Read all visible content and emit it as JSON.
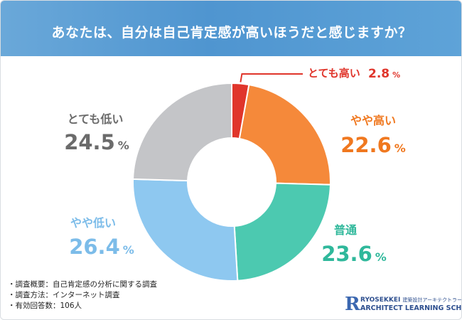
{
  "header": {
    "title": "あなたは、自分は自己肯定感が高いほうだと感じますか？"
  },
  "chart_data": {
    "type": "pie",
    "title": "あなたは、自分は自己肯定感が高いほうだと感じますか？",
    "donut": true,
    "unit": "%",
    "categories": [
      "とても高い",
      "やや高い",
      "普通",
      "やや低い",
      "とても低い"
    ],
    "values": [
      2.8,
      22.6,
      23.6,
      26.4,
      24.5
    ],
    "value_labels": [
      "2.8",
      "22.6",
      "23.6",
      "26.4",
      "24.5"
    ],
    "colors": [
      "#e0352b",
      "#f5893a",
      "#4cc9b0",
      "#8ec8f0",
      "#c4c5c8"
    ],
    "label_colors": [
      "#e0352b",
      "#f0781f",
      "#2fb89b",
      "#7cbce9",
      "#6b6b6b"
    ]
  },
  "footer": {
    "notes": [
      "・調査概要：自己肯定感の分析に関する調査",
      "・調査方法：インターネット調査",
      "・有効回答数：106人"
    ]
  },
  "logo": {
    "mark": "R",
    "line1": "RYOSEKKEI",
    "line1_kana": "建築設計アーキテクトラーニング",
    "line2": "ARCHITECT LEARNING SCHOOL"
  }
}
